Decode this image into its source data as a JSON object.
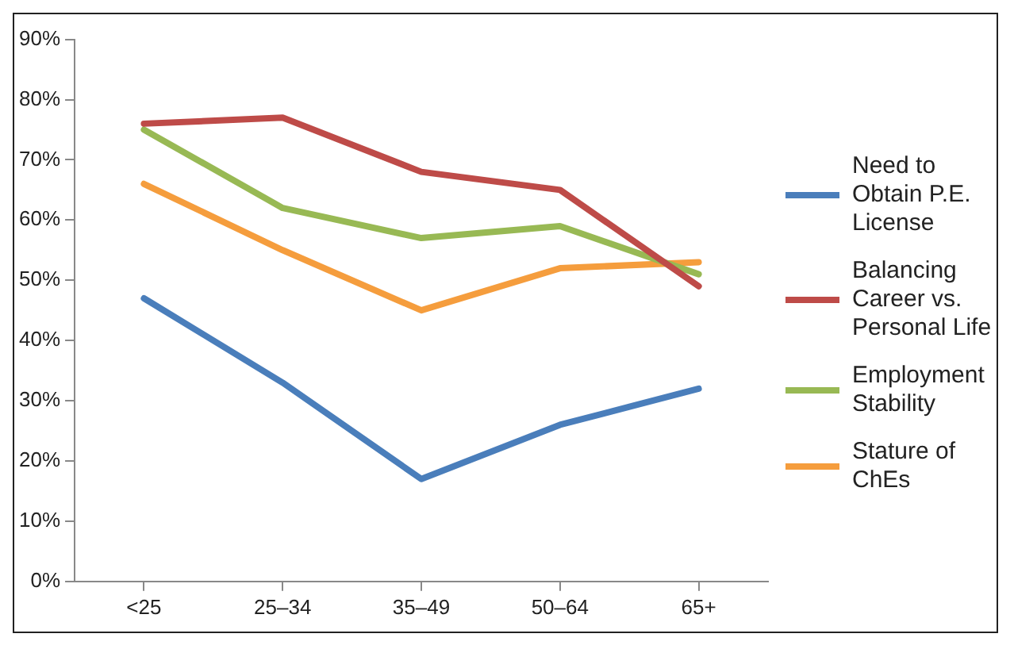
{
  "chart_data": {
    "type": "line",
    "categories": [
      "<25",
      "25–34",
      "35–49",
      "50–64",
      "65+"
    ],
    "series": [
      {
        "name": "Need to Obtain P.E. License",
        "color": "#4a7ebb",
        "values": [
          47,
          33,
          17,
          26,
          32
        ]
      },
      {
        "name": "Balancing Career vs. Personal Life",
        "color": "#be4b48",
        "values": [
          76,
          77,
          68,
          65,
          49
        ]
      },
      {
        "name": "Employment Stability",
        "color": "#98b954",
        "values": [
          75,
          62,
          57,
          59,
          51
        ]
      },
      {
        "name": "Stature of ChEs",
        "color": "#f59d3d",
        "values": [
          66,
          55,
          45,
          52,
          53
        ]
      }
    ],
    "ylim": [
      0,
      90
    ],
    "yticks": [
      {
        "value": 0,
        "label": "0%"
      },
      {
        "value": 10,
        "label": "10%"
      },
      {
        "value": 20,
        "label": "20%"
      },
      {
        "value": 30,
        "label": "30%"
      },
      {
        "value": 40,
        "label": "40%"
      },
      {
        "value": 50,
        "label": "50%"
      },
      {
        "value": 60,
        "label": "60%"
      },
      {
        "value": 70,
        "label": "70%"
      },
      {
        "value": 80,
        "label": "80%"
      },
      {
        "value": 90,
        "label": "90%"
      }
    ],
    "grid": false,
    "legend": "right",
    "marker": "none",
    "line_style": "solid"
  }
}
